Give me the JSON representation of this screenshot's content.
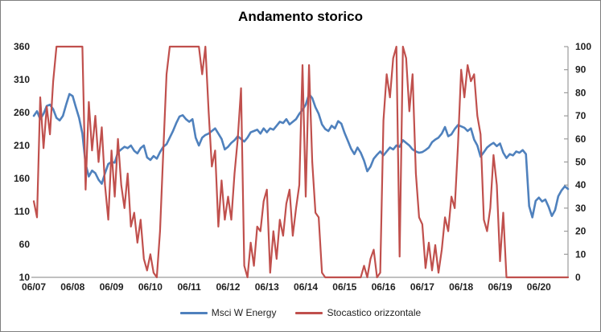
{
  "chart_data": {
    "type": "line",
    "title": "Andamento storico",
    "x_tick_labels": [
      "06/07",
      "06/08",
      "06/09",
      "06/10",
      "06/11",
      "06/12",
      "06/13",
      "06/14",
      "06/15",
      "06/16",
      "06/17",
      "06/18",
      "06/19",
      "06/20"
    ],
    "x_sampling": "monthly",
    "samples_per_year": 12,
    "grid": false,
    "legend_position": "bottom",
    "left_axis": {
      "min": 10,
      "max": 360,
      "step": 50,
      "ticks": [
        360,
        310,
        260,
        210,
        160,
        110,
        60,
        10
      ]
    },
    "right_axis": {
      "min": 0,
      "max": 100,
      "step": 10,
      "ticks": [
        100,
        90,
        80,
        70,
        60,
        50,
        40,
        30,
        20,
        10,
        0
      ]
    },
    "axis_color": "#9b9b9b",
    "tick_label_color": "#1f1f1f",
    "series": [
      {
        "name": "Msci W Energy",
        "axis": "left",
        "color": "#4F81BD",
        "values": [
          255,
          262,
          250,
          258,
          270,
          272,
          265,
          252,
          248,
          255,
          272,
          288,
          285,
          268,
          252,
          228,
          182,
          163,
          172,
          168,
          158,
          152,
          168,
          182,
          185,
          184,
          200,
          204,
          208,
          206,
          210,
          202,
          198,
          206,
          210,
          192,
          188,
          194,
          190,
          200,
          208,
          212,
          222,
          232,
          244,
          254,
          256,
          250,
          246,
          250,
          222,
          210,
          222,
          226,
          228,
          232,
          236,
          228,
          220,
          204,
          208,
          214,
          218,
          224,
          220,
          216,
          222,
          230,
          232,
          234,
          228,
          236,
          230,
          236,
          234,
          240,
          246,
          244,
          250,
          242,
          246,
          250,
          258,
          264,
          272,
          288,
          282,
          268,
          258,
          242,
          235,
          232,
          240,
          236,
          247,
          243,
          229,
          217,
          205,
          197,
          207,
          199,
          187,
          171,
          178,
          190,
          196,
          201,
          195,
          201,
          207,
          204,
          210,
          208,
          218,
          214,
          210,
          204,
          201,
          199,
          200,
          203,
          207,
          215,
          219,
          222,
          228,
          238,
          224,
          227,
          235,
          241,
          239,
          237,
          232,
          236,
          219,
          210,
          193,
          200,
          207,
          211,
          214,
          209,
          213,
          199,
          191,
          197,
          195,
          201,
          199,
          203,
          197,
          118,
          101,
          126,
          131,
          125,
          128,
          117,
          103,
          112,
          133,
          142,
          148,
          144
        ]
      },
      {
        "name": "Stocastico orizzontale",
        "axis": "right",
        "color": "#C0504D",
        "values": [
          33,
          26,
          78,
          56,
          74,
          62,
          85,
          100,
          100,
          100,
          100,
          100,
          100,
          100,
          100,
          100,
          38,
          76,
          55,
          70,
          50,
          65,
          40,
          25,
          55,
          35,
          60,
          40,
          30,
          45,
          22,
          28,
          15,
          25,
          8,
          3,
          10,
          2,
          0,
          20,
          55,
          88,
          100,
          100,
          100,
          100,
          100,
          100,
          100,
          100,
          100,
          100,
          88,
          100,
          72,
          48,
          55,
          22,
          42,
          25,
          35,
          25,
          45,
          60,
          82,
          5,
          0,
          15,
          5,
          22,
          20,
          33,
          38,
          2,
          20,
          8,
          25,
          18,
          32,
          38,
          18,
          30,
          40,
          92,
          35,
          92,
          50,
          28,
          26,
          2,
          0,
          0,
          0,
          0,
          0,
          0,
          0,
          0,
          0,
          0,
          0,
          0,
          5,
          0,
          8,
          12,
          0,
          2,
          68,
          88,
          78,
          95,
          100,
          9,
          100,
          95,
          72,
          88,
          45,
          26,
          23,
          4,
          15,
          3,
          14,
          2,
          12,
          26,
          20,
          35,
          30,
          57,
          90,
          78,
          92,
          85,
          88,
          70,
          62,
          25,
          20,
          30,
          53,
          40,
          7,
          28,
          0,
          0,
          0,
          0,
          0,
          0,
          0,
          0,
          0,
          0,
          0,
          0,
          0,
          0,
          0,
          0,
          0,
          0,
          0,
          0
        ]
      }
    ]
  }
}
